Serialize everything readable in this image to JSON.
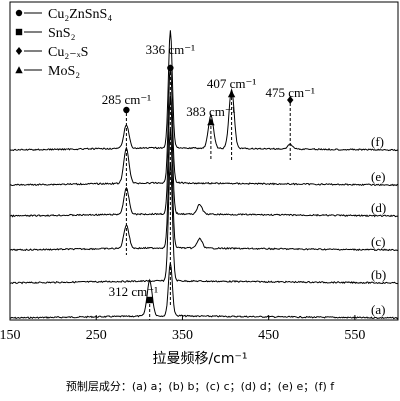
{
  "chart_data": {
    "type": "line",
    "xlabel": "拉曼频移/cm⁻¹",
    "xlim": [
      150,
      600
    ],
    "xticks": [
      150,
      250,
      350,
      450,
      550
    ],
    "legend": {
      "position": "top-left",
      "entries": [
        {
          "marker": "circle",
          "label": "Cu₂ZnSnS₄"
        },
        {
          "marker": "square",
          "label": "SnS₂"
        },
        {
          "marker": "diamond",
          "label": "Cu₂₋ₓS"
        },
        {
          "marker": "triangle",
          "label": "MoS₂"
        }
      ]
    },
    "peaks": [
      {
        "x": 285,
        "label": "285 cm⁻¹",
        "marker": "circle"
      },
      {
        "x": 336,
        "label": "336 cm⁻¹",
        "marker": "circle"
      },
      {
        "x": 383,
        "label": "383 cm⁻¹",
        "marker": "triangle"
      },
      {
        "x": 407,
        "label": "407 cm⁻¹",
        "marker": "triangle"
      },
      {
        "x": 475,
        "label": "475 cm⁻¹",
        "marker": "diamond"
      },
      {
        "x": 312,
        "label": "312 cm⁻¹",
        "marker": "square"
      }
    ],
    "series": [
      {
        "name": "(a)",
        "peaks": [
          {
            "x": 312,
            "h": 0.3
          },
          {
            "x": 336,
            "h": 0.45
          }
        ]
      },
      {
        "name": "(b)",
        "peaks": [
          {
            "x": 336,
            "h": 1.0
          }
        ]
      },
      {
        "name": "(c)",
        "peaks": [
          {
            "x": 285,
            "h": 0.2
          },
          {
            "x": 336,
            "h": 1.0
          },
          {
            "x": 370,
            "h": 0.08
          }
        ]
      },
      {
        "name": "(d)",
        "peaks": [
          {
            "x": 285,
            "h": 0.22
          },
          {
            "x": 336,
            "h": 1.0
          },
          {
            "x": 370,
            "h": 0.08
          }
        ]
      },
      {
        "name": "(e)",
        "peaks": [
          {
            "x": 285,
            "h": 0.3
          },
          {
            "x": 336,
            "h": 1.0
          }
        ]
      },
      {
        "name": "(f)",
        "peaks": [
          {
            "x": 285,
            "h": 0.2
          },
          {
            "x": 336,
            "h": 1.0
          },
          {
            "x": 383,
            "h": 0.28
          },
          {
            "x": 407,
            "h": 0.5
          },
          {
            "x": 475,
            "h": 0.04
          }
        ]
      }
    ]
  },
  "caption": "预制层成分：(a) a；(b) b；(c) c；(d) d；(e) e；(f) f"
}
